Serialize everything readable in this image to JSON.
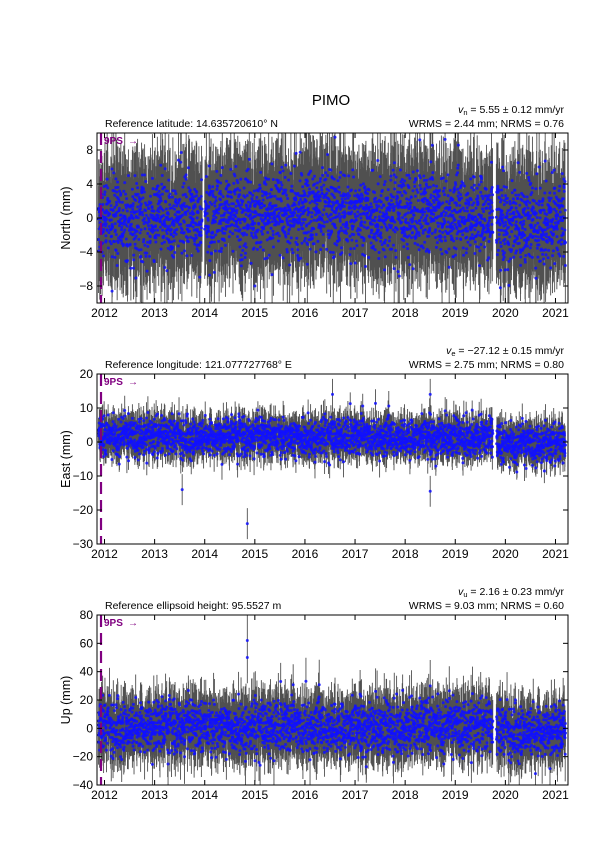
{
  "chart_data": {
    "type": "scatter",
    "title": "PIMO",
    "x_range": [
      2011.85,
      2021.25
    ],
    "x_ticks": [
      2012,
      2013,
      2014,
      2015,
      2016,
      2017,
      2018,
      2019,
      2020,
      2021
    ],
    "event": {
      "label": "9PS",
      "arrow": "→",
      "x": 2011.93,
      "color": "#800080"
    },
    "point_color": "#1010ff",
    "errorbar_color": "#505050",
    "panels": [
      {
        "id": "north",
        "ylabel": "North (mm)",
        "reference": "Reference latitude: 14.635720610° N",
        "velocity_symbol": "v",
        "velocity_sub": "n",
        "velocity_value": " = 5.55 ± 0.12 mm/yr",
        "stats": "WRMS = 2.44 mm; NRMS = 0.76",
        "ylim": [
          -10,
          10
        ],
        "y_ticks": [
          -8,
          -4,
          0,
          4,
          8
        ],
        "scatter_sd": 2.44,
        "error_bar": 4.5,
        "outliers": [
          [
            2012.15,
            -8.6
          ],
          [
            2015.0,
            -8.0
          ],
          [
            2016.6,
            9.5
          ],
          [
            2019.9,
            -8.2
          ]
        ],
        "segments": [
          [
            2011.88,
            2013.95,
            0.0
          ],
          [
            2014.0,
            2019.75,
            0.5
          ],
          [
            2019.82,
            2021.2,
            -0.3
          ]
        ]
      },
      {
        "id": "east",
        "ylabel": "East (mm)",
        "reference": "Reference longitude: 121.077727768° E",
        "velocity_symbol": "v",
        "velocity_sub": "e",
        "velocity_value": " = −27.12 ± 0.15 mm/yr",
        "stats": "WRMS = 2.75 mm; NRMS = 0.80",
        "ylim": [
          -30,
          20
        ],
        "y_ticks": [
          -30,
          -20,
          -10,
          0,
          10,
          20
        ],
        "scatter_sd": 2.75,
        "error_bar": 3.5,
        "outliers": [
          [
            2013.55,
            -14.0
          ],
          [
            2014.85,
            -24.0
          ],
          [
            2018.5,
            -14.5
          ],
          [
            2018.5,
            14.0
          ],
          [
            2016.55,
            14.0
          ]
        ],
        "segments": [
          [
            2011.88,
            2019.75,
            1.5
          ],
          [
            2019.82,
            2021.2,
            -0.8
          ]
        ]
      },
      {
        "id": "up",
        "ylabel": "Up (mm)",
        "reference": "Reference ellipsoid height: 95.5527 m",
        "velocity_symbol": "v",
        "velocity_sub": "u",
        "velocity_value": " = 2.16 ± 0.23 mm/yr",
        "stats": "WRMS = 9.03 mm; NRMS = 0.60",
        "ylim": [
          -40,
          80
        ],
        "y_ticks": [
          -40,
          -20,
          0,
          20,
          40,
          60,
          80
        ],
        "scatter_sd": 9.0,
        "error_bar": 14,
        "outliers": [
          [
            2014.85,
            62.0
          ],
          [
            2014.85,
            50.0
          ],
          [
            2018.5,
            30.0
          ],
          [
            2020.6,
            -32.0
          ]
        ],
        "segments": [
          [
            2011.88,
            2019.75,
            1.0
          ],
          [
            2019.82,
            2021.2,
            -2.0
          ]
        ]
      }
    ]
  }
}
